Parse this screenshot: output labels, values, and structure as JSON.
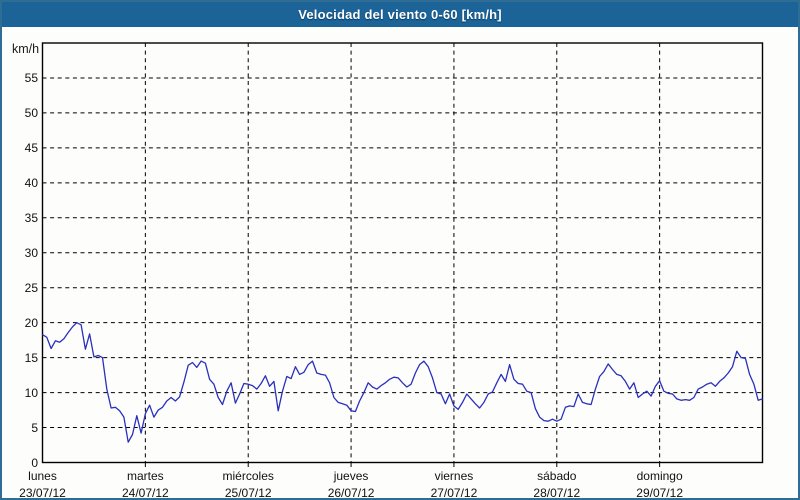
{
  "title_bar": {
    "text": "Velocidad del viento 0-60 [km/h]",
    "bg_color": "#1c6398",
    "text_color": "#ffffff"
  },
  "frame_color": "#2f6d94",
  "chart_data": {
    "type": "line",
    "title": "Velocidad del viento 0-60 [km/h]",
    "ylabel": "km/h",
    "xlabel": "",
    "ylim": [
      0,
      60
    ],
    "yticks": [
      0,
      5,
      10,
      15,
      20,
      25,
      30,
      35,
      40,
      45,
      50,
      55
    ],
    "grid": true,
    "grid_style": "dashed-black",
    "line_color": "#2a30bd",
    "legend_position": "none",
    "x_days": [
      {
        "name": "lunes",
        "date": "23/07/12"
      },
      {
        "name": "martes",
        "date": "24/07/12"
      },
      {
        "name": "miércoles",
        "date": "25/07/12"
      },
      {
        "name": "jueves",
        "date": "26/07/12"
      },
      {
        "name": "viernes",
        "date": "27/07/12"
      },
      {
        "name": "sábado",
        "date": "28/07/12"
      },
      {
        "name": "domingo",
        "date": "29/07/12"
      }
    ],
    "points_per_day": 24,
    "unit": "km/h",
    "values": [
      18.3,
      17.9,
      16.3,
      17.4,
      17.2,
      17.7,
      18.6,
      19.4,
      20.0,
      19.7,
      16.2,
      18.4,
      15.1,
      15.3,
      15.0,
      10.5,
      7.8,
      7.9,
      7.4,
      6.5,
      2.9,
      4.0,
      6.7,
      4.2,
      7.0,
      8.2,
      6.5,
      7.5,
      7.9,
      8.8,
      9.3,
      8.8,
      9.4,
      11.5,
      13.9,
      14.3,
      13.6,
      14.5,
      14.2,
      11.9,
      11.2,
      9.3,
      8.3,
      10.2,
      11.4,
      8.5,
      9.8,
      11.3,
      11.2,
      11.0,
      10.5,
      11.3,
      12.4,
      10.9,
      11.6,
      7.4,
      10.2,
      12.3,
      12.0,
      13.7,
      12.6,
      12.9,
      14.0,
      14.5,
      12.8,
      12.6,
      12.5,
      11.4,
      9.3,
      8.6,
      8.4,
      8.2,
      7.4,
      7.3,
      8.8,
      10.0,
      11.4,
      10.8,
      10.5,
      11.0,
      11.4,
      11.9,
      12.2,
      12.1,
      11.4,
      10.8,
      11.2,
      12.8,
      14.0,
      14.5,
      13.7,
      12.1,
      10.0,
      9.8,
      8.4,
      9.8,
      8.1,
      7.6,
      8.6,
      9.8,
      9.1,
      8.4,
      7.8,
      8.6,
      9.8,
      10.1,
      11.4,
      12.6,
      11.6,
      14.0,
      11.9,
      11.3,
      11.2,
      10.2,
      10.0,
      7.7,
      6.5,
      6.0,
      5.9,
      6.2,
      5.9,
      6.2,
      7.9,
      8.1,
      8.0,
      9.8,
      8.6,
      8.4,
      8.3,
      10.5,
      12.3,
      13.0,
      14.1,
      13.3,
      12.6,
      12.4,
      11.6,
      10.5,
      11.4,
      9.3,
      9.8,
      10.2,
      9.5,
      10.9,
      11.7,
      10.2,
      9.9,
      9.8,
      9.1,
      8.9,
      9.0,
      8.9,
      9.3,
      10.5,
      10.8,
      11.2,
      11.4,
      10.9,
      11.6,
      12.1,
      12.8,
      13.7,
      15.9,
      15.0,
      14.9,
      12.6,
      11.2,
      8.9,
      9.1
    ]
  }
}
